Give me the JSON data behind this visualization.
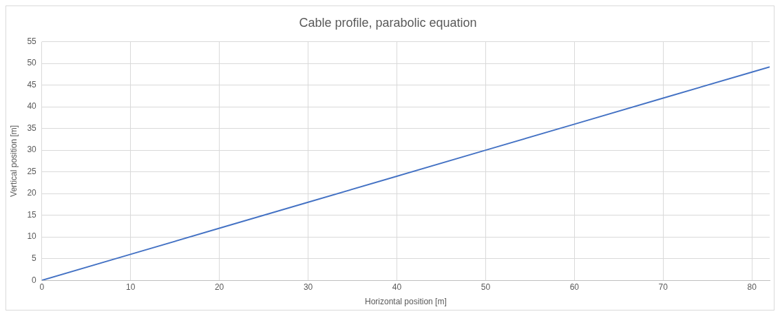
{
  "chart_data": {
    "type": "line",
    "title": "Cable profile, parabolic equation",
    "xlabel": "Horizontal position [m]",
    "ylabel": "Vertical position [m]",
    "x": [
      0,
      10,
      20,
      30,
      40,
      50,
      60,
      70,
      80,
      82
    ],
    "series": [
      {
        "color": "#4472c4",
        "values": [
          0,
          6,
          12,
          18,
          24,
          30,
          36,
          42,
          48,
          49.2
        ]
      }
    ],
    "xlim": [
      0,
      82
    ],
    "xticks": [
      0,
      10,
      20,
      30,
      40,
      50,
      60,
      70,
      80
    ],
    "ylim": [
      0,
      55
    ],
    "yticks": [
      0,
      5,
      10,
      15,
      20,
      25,
      30,
      35,
      40,
      45,
      50,
      55
    ],
    "grid": true,
    "legend": false,
    "marker": "none",
    "line_style": "solid"
  }
}
